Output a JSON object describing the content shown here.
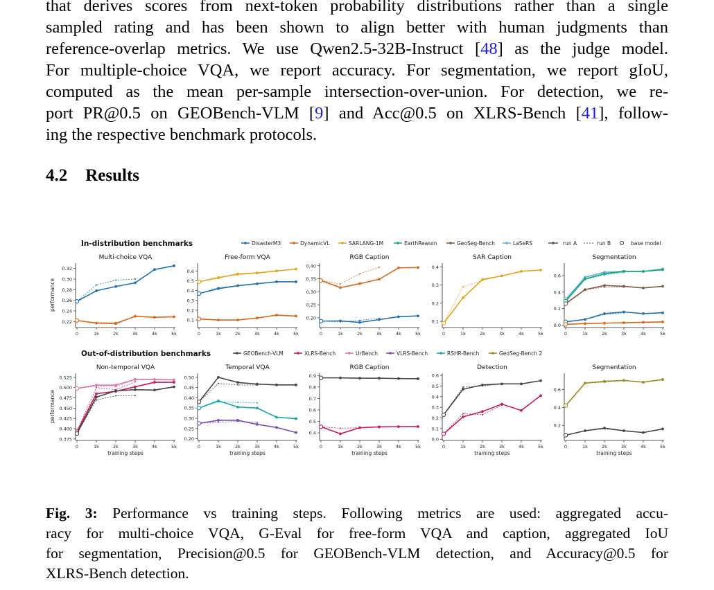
{
  "paragraph": {
    "lines": [
      [
        {
          "t": "that derives scores from next-token probability distributions rather than a single"
        }
      ],
      [
        {
          "t": "sampled rating and has been shown to align better with human judgments than"
        }
      ],
      [
        {
          "t": "reference-overlap metrics. We use Qwen2.5-32B-Instruct ["
        },
        {
          "t": "48",
          "cite": true
        },
        {
          "t": "] as the judge model."
        }
      ],
      [
        {
          "t": "For multiple-choice VQA, we report accuracy. For segmentation, we report gIoU,"
        }
      ],
      [
        {
          "t": "computed as the mean per-sample intersection-over-union. For detection, we re-"
        }
      ],
      [
        {
          "t": "port PR@0.5 on GEOBench-VLM ["
        },
        {
          "t": "9",
          "cite": true
        },
        {
          "t": "] and Acc@0.5 on XLRS-Bench ["
        },
        {
          "t": "41",
          "cite": true
        },
        {
          "t": "], follow-"
        }
      ],
      [
        {
          "t": "ing the respective benchmark protocols."
        }
      ]
    ]
  },
  "section": {
    "number": "4.2",
    "title": "Results"
  },
  "caption": {
    "label": "Fig. 3:",
    "lines": [
      " Performance vs training steps. Following metrics are used: aggregated accu-",
      "racy for multi-choice VQA, G-Eval for free-form VQA and caption, aggregated IoU",
      "for segmentation, Precision@0.5 for GEOBench-VLM detection, and Accuracy@0.5 for",
      "XLRS-Bench detection."
    ]
  },
  "chart_data": {
    "type": "line",
    "x": [
      0,
      1000,
      2000,
      3000,
      4000,
      5000
    ],
    "tick_labels": [
      "0",
      "1k",
      "2k",
      "3k",
      "4k",
      "5k"
    ],
    "xlabel": "training steps",
    "ylabel": "performance",
    "style_legend": [
      "run A",
      "run B",
      "base model"
    ],
    "groups": [
      {
        "title": "In-distribution benchmarks",
        "legend": [
          {
            "name": "DisasterM3",
            "color": "#1f6fb4"
          },
          {
            "name": "DynamicVL",
            "color": "#d9661a"
          },
          {
            "name": "SARLANG-1M",
            "color": "#e6a317"
          },
          {
            "name": "EarthReason",
            "color": "#1aa37a"
          },
          {
            "name": "GeoSeg-Bench",
            "color": "#7f5648"
          },
          {
            "name": "LaSeRS",
            "color": "#5aaee0"
          }
        ],
        "panels": [
          {
            "title": "Multi-choice VQA",
            "ylim": [
              0.21,
              0.33
            ],
            "yticks": [
              0.22,
              0.24,
              0.26,
              0.28,
              0.3,
              0.32
            ],
            "series": [
              {
                "name": "DisasterM3",
                "color": "#1f6fb4",
                "values": [
                  0.258,
                  0.278,
                  0.286,
                  0.293,
                  0.318,
                  0.325
                ],
                "dashed": [
                  0.258,
                  0.289,
                  0.298,
                  0.3
                ]
              },
              {
                "name": "DynamicVL",
                "color": "#d9661a",
                "values": [
                  0.222,
                  0.217,
                  0.216,
                  0.23,
                  0.228,
                  0.229
                ],
                "dashed": [
                  0.222,
                  0.218,
                  0.218,
                  0.229
                ]
              }
            ]
          },
          {
            "title": "Free-form VQA",
            "ylim": [
              0.03,
              0.68
            ],
            "yticks": [
              0.1,
              0.2,
              0.3,
              0.4,
              0.5,
              0.6
            ],
            "series": [
              {
                "name": "SARLANG-1M",
                "color": "#e6a317",
                "values": [
                  0.49,
                  0.53,
                  0.57,
                  0.58,
                  0.6,
                  0.62
                ],
                "dashed": [
                  0.49,
                  0.54,
                  0.56,
                  0.58
                ]
              },
              {
                "name": "DisasterM3",
                "color": "#1f6fb4",
                "values": [
                  0.37,
                  0.42,
                  0.45,
                  0.47,
                  0.49,
                  0.49
                ],
                "dashed": [
                  0.37,
                  0.43,
                  0.45,
                  0.47
                ]
              },
              {
                "name": "DynamicVL",
                "color": "#d9661a",
                "values": [
                  0.11,
                  0.1,
                  0.1,
                  0.12,
                  0.15,
                  0.14
                ],
                "dashed": [
                  0.11,
                  0.1,
                  0.1,
                  0.12
                ]
              }
            ]
          },
          {
            "title": "RGB Caption",
            "ylim": [
              0.165,
              0.41
            ],
            "yticks": [
              0.2,
              0.25,
              0.3,
              0.35,
              0.4
            ],
            "series": [
              {
                "name": "DynamicVL",
                "color": "#d9661a",
                "values": [
                  0.343,
                  0.316,
                  0.331,
                  0.348,
                  0.392,
                  0.393
                ],
                "dashed": [
                  0.343,
                  0.33,
                  0.369,
                  0.394
                ]
              },
              {
                "name": "DisasterM3",
                "color": "#1f6fb4",
                "values": [
                  0.187,
                  0.188,
                  0.182,
                  0.193,
                  0.204,
                  0.207
                ],
                "dashed": [
                  0.187,
                  0.184,
                  0.19,
                  0.198
                ]
              }
            ]
          },
          {
            "title": "SAR Caption",
            "ylim": [
              0.07,
              0.42
            ],
            "yticks": [
              0.1,
              0.2,
              0.3,
              0.4
            ],
            "series": [
              {
                "name": "SARLANG-1M",
                "color": "#e6a317",
                "values": [
                  0.09,
                  0.23,
                  0.33,
                  0.35,
                  0.375,
                  0.382
                ],
                "dashed": [
                  0.09,
                  0.29,
                  0.325,
                  0.35
                ]
              }
            ]
          },
          {
            "title": "Segmentation",
            "ylim": [
              -0.02,
              0.75
            ],
            "yticks": [
              0.0,
              0.2,
              0.4,
              0.6
            ],
            "series": [
              {
                "name": "LaSeRS",
                "color": "#5aaee0",
                "values": [
                  0.31,
                  0.58,
                  0.64,
                  0.65,
                  0.65,
                  0.68
                ],
                "dashed": [
                  0.31,
                  0.56,
                  0.63,
                  0.65
                ]
              },
              {
                "name": "EarthReason",
                "color": "#1aa37a",
                "values": [
                  0.29,
                  0.56,
                  0.62,
                  0.65,
                  0.65,
                  0.67
                ],
                "dashed": [
                  0.29,
                  0.55,
                  0.61,
                  0.64
                ]
              },
              {
                "name": "GeoSeg-Bench",
                "color": "#7f5648",
                "values": [
                  0.26,
                  0.43,
                  0.48,
                  0.47,
                  0.45,
                  0.47
                ],
                "dashed": [
                  0.26,
                  0.43,
                  0.46,
                  0.46
                ]
              },
              {
                "name": "DisasterM3",
                "color": "#1f6fb4",
                "values": [
                  0.04,
                  0.07,
                  0.14,
                  0.16,
                  0.14,
                  0.15
                ],
                "dashed": [
                  0.04,
                  0.07,
                  0.13,
                  0.15
                ]
              },
              {
                "name": "DynamicVL",
                "color": "#d9661a",
                "values": [
                  0.01,
                  0.02,
                  0.025,
                  0.03,
                  0.035,
                  0.04
                ],
                "dashed": [
                  0.01,
                  0.02,
                  0.025,
                  0.03
                ]
              }
            ]
          }
        ]
      },
      {
        "title": "Out-of-distribution benchmarks",
        "legend": [
          {
            "name": "GEOBench-VLM",
            "color": "#444444"
          },
          {
            "name": "XLRS-Bench",
            "color": "#c8185a"
          },
          {
            "name": "UrBench",
            "color": "#e472a8"
          },
          {
            "name": "VLRS-Bench",
            "color": "#7b4ab0"
          },
          {
            "name": "RSHR-Bench",
            "color": "#17a3a8"
          },
          {
            "name": "GeoSeg-Bench 2",
            "color": "#9b8a1c"
          }
        ],
        "panels": [
          {
            "title": "Non-temporal VQA",
            "ylim": [
              0.373,
              0.535
            ],
            "yticks": [
              0.375,
              0.4,
              0.425,
              0.45,
              0.475,
              0.5,
              0.525
            ],
            "series": [
              {
                "name": "UrBench",
                "color": "#e472a8",
                "values": [
                  0.498,
                  0.506,
                  0.506,
                  0.52,
                  0.52,
                  0.519
                ],
                "dashed": [
                  0.498,
                  0.503,
                  0.502,
                  0.52
                ]
              },
              {
                "name": "XLRS-Bench",
                "color": "#c8185a",
                "values": [
                  0.393,
                  0.485,
                  0.491,
                  0.502,
                  0.513,
                  0.513
                ],
                "dashed": [
                  0.393,
                  0.5,
                  0.495,
                  0.514
                ]
              },
              {
                "name": "GEOBench-VLM",
                "color": "#444444",
                "values": [
                  0.388,
                  0.477,
                  0.492,
                  0.495,
                  0.494,
                  0.502
                ],
                "dashed": [
                  0.388,
                  0.47,
                  0.48,
                  0.481
                ]
              }
            ]
          },
          {
            "title": "Temporal VQA",
            "ylim": [
              0.195,
              0.52
            ],
            "yticks": [
              0.2,
              0.25,
              0.3,
              0.35,
              0.4,
              0.45,
              0.5
            ],
            "series": [
              {
                "name": "GEOBench-VLM",
                "color": "#444444",
                "values": [
                  0.38,
                  0.5,
                  0.475,
                  0.467,
                  0.463,
                  0.463
                ],
                "dashed": [
                  0.38,
                  0.47,
                  0.463,
                  0.462
                ]
              },
              {
                "name": "RSHR-Bench",
                "color": "#17a3a8",
                "values": [
                  0.35,
                  0.385,
                  0.355,
                  0.35,
                  0.305,
                  0.298
                ],
                "dashed": [
                  0.35,
                  0.38,
                  0.378,
                  0.375
                ]
              },
              {
                "name": "VLRS-Bench",
                "color": "#7b4ab0",
                "values": [
                  0.275,
                  0.29,
                  0.29,
                  0.27,
                  0.255,
                  0.23
                ],
                "dashed": [
                  0.275,
                  0.28,
                  0.285,
                  0.28
                ]
              }
            ]
          },
          {
            "title": "RGB Caption",
            "ylim": [
              0.34,
              0.92
            ],
            "yticks": [
              0.4,
              0.5,
              0.6,
              0.7,
              0.8,
              0.9
            ],
            "series": [
              {
                "name": "GEOBench-VLM",
                "color": "#444444",
                "values": [
                  0.88,
                  0.88,
                  0.877,
                  0.877,
                  0.874,
                  0.872
                ],
                "dashed": [
                  0.88,
                  0.878,
                  0.876,
                  0.876
                ]
              },
              {
                "name": "XLRS-Bench",
                "color": "#c8185a",
                "values": [
                  0.453,
                  0.392,
                  0.445,
                  0.452,
                  0.454,
                  0.455
                ],
                "dashed": [
                  0.453,
                  0.44,
                  0.445,
                  0.45
                ]
              }
            ]
          },
          {
            "title": "Detection",
            "ylim": [
              -0.005,
              0.62
            ],
            "yticks": [
              0.0,
              0.1,
              0.2,
              0.3,
              0.4,
              0.5,
              0.6
            ],
            "series": [
              {
                "name": "GEOBench-VLM",
                "color": "#444444",
                "values": [
                  0.23,
                  0.47,
                  0.51,
                  0.52,
                  0.52,
                  0.55
                ],
                "dashed": [
                  0.23,
                  0.49,
                  0.5,
                  0.52
                ]
              },
              {
                "name": "XLRS-Bench",
                "color": "#c8185a",
                "values": [
                  0.05,
                  0.21,
                  0.26,
                  0.33,
                  0.27,
                  0.41
                ],
                "dashed": [
                  0.05,
                  0.24,
                  0.23,
                  0.32
                ]
              }
            ]
          },
          {
            "title": "Segmentation",
            "ylim": [
              0.04,
              0.78
            ],
            "yticks": [
              0.2,
              0.4,
              0.6
            ],
            "series": [
              {
                "name": "GeoSeg-Bench 2",
                "color": "#9b8a1c",
                "values": [
                  0.42,
                  0.67,
                  0.69,
                  0.7,
                  0.68,
                  0.71
                ],
                "dashed": [
                  0.42,
                  0.67,
                  0.68,
                  0.7
                ]
              },
              {
                "name": "GEOBench-VLM",
                "color": "#444444",
                "values": [
                  0.09,
                  0.14,
                  0.17,
                  0.14,
                  0.12,
                  0.16
                ],
                "dashed": [
                  0.09,
                  0.14,
                  0.16,
                  0.14
                ]
              }
            ]
          }
        ]
      }
    ]
  }
}
